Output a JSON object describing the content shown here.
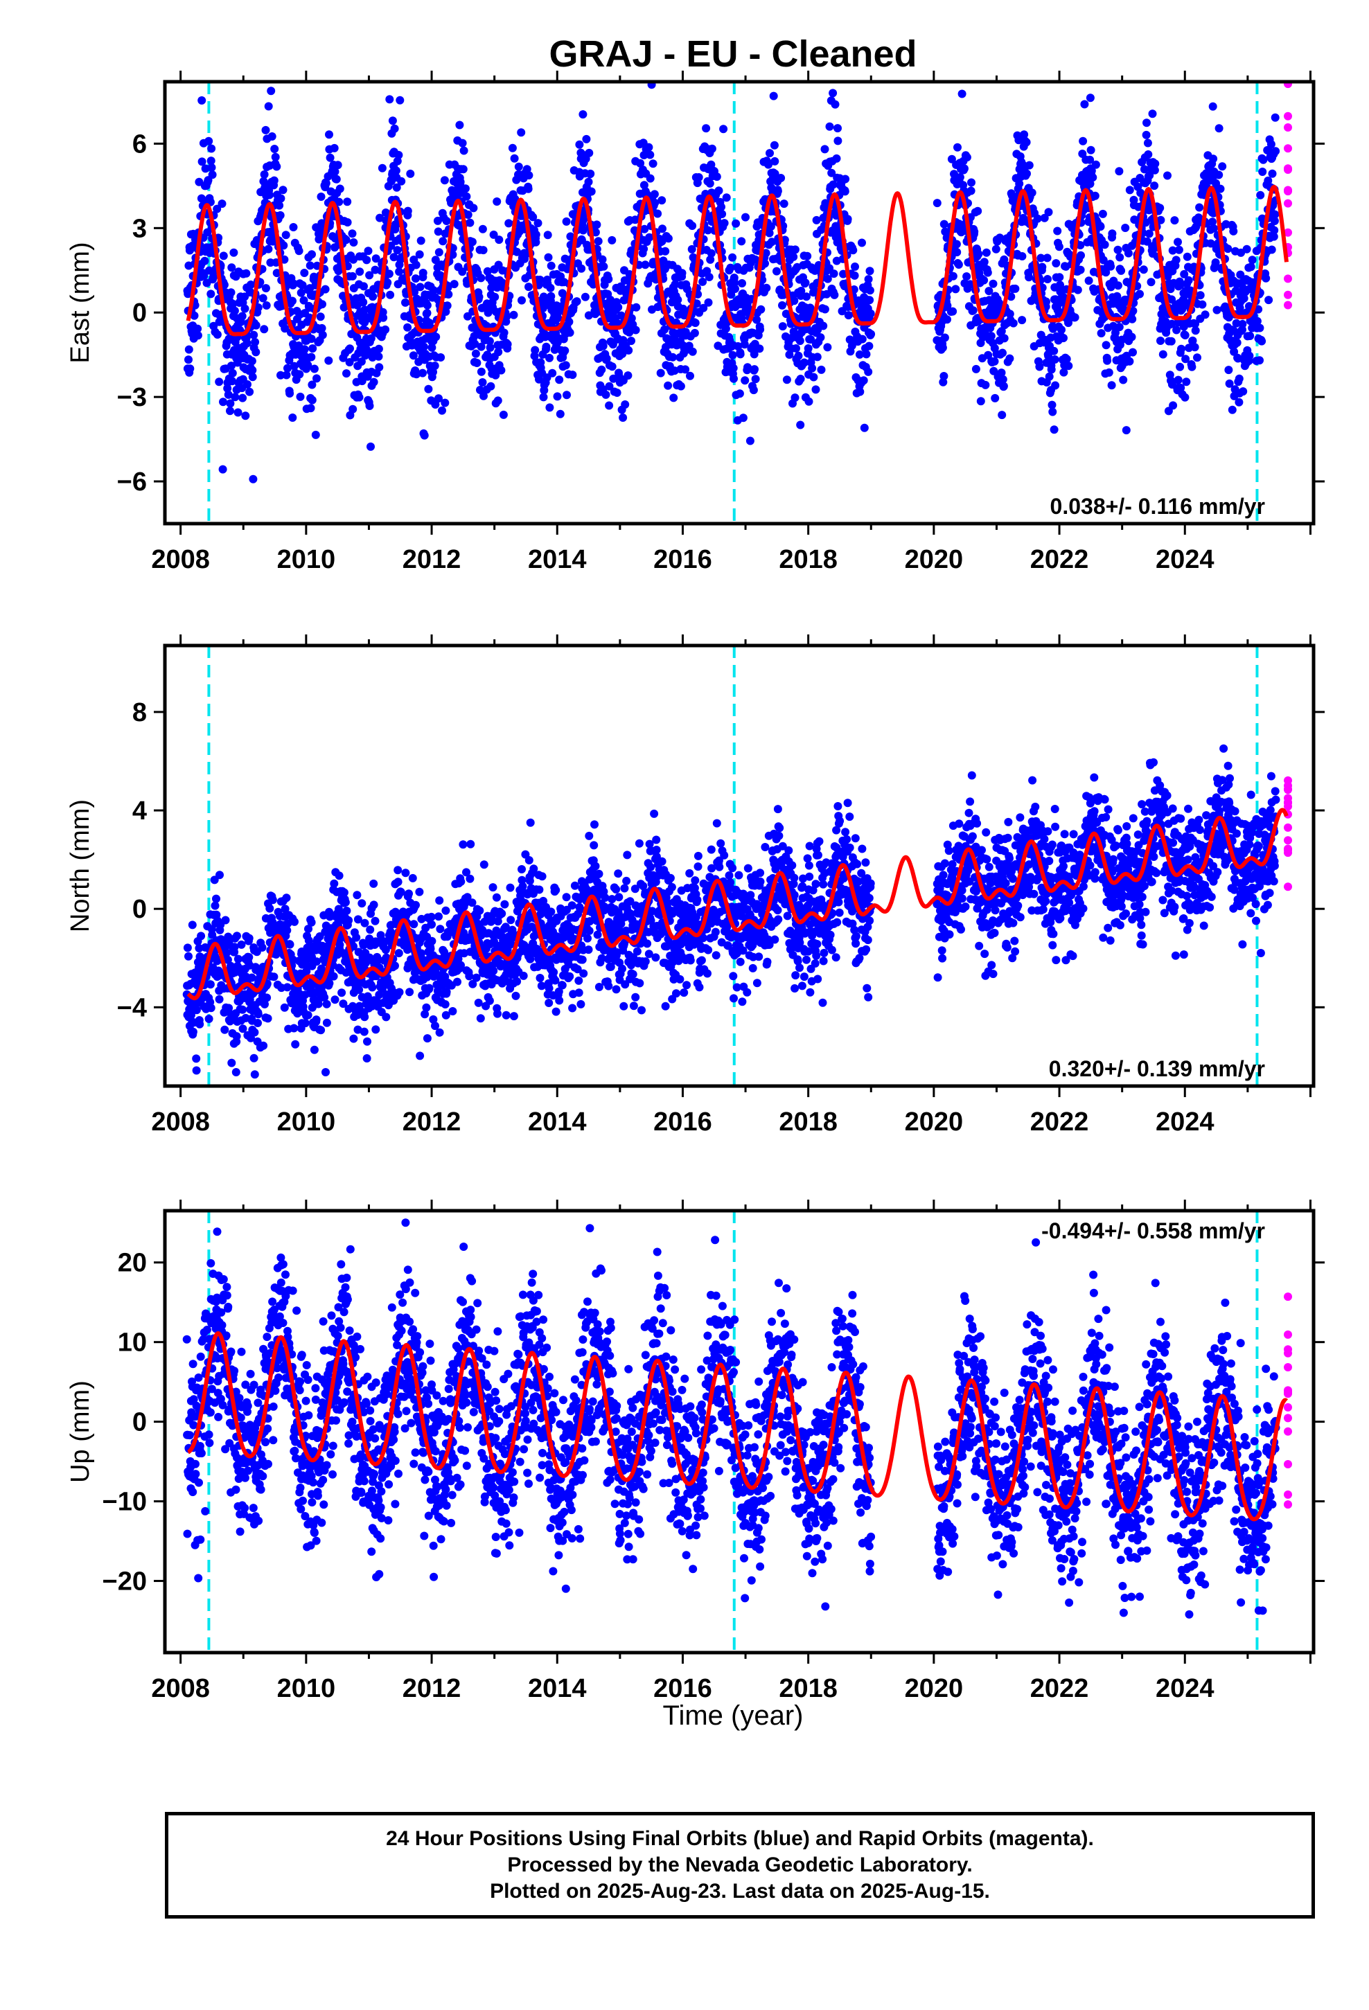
{
  "title": "GRAJ  - EU - Cleaned",
  "footer": {
    "line1": "24 Hour Positions Using Final Orbits (blue) and Rapid Orbits (magenta).",
    "line2": "Processed by the Nevada Geodetic Laboratory.",
    "line3": "Plotted on 2025-Aug-23. Last data on 2025-Aug-15."
  },
  "chart_data": [
    {
      "type": "scatter",
      "ylabel": "East (mm)",
      "xlabel": "",
      "xlim": [
        2007.75,
        2026.05
      ],
      "ylim": [
        -7.5,
        8.2
      ],
      "x_ticks": [
        "2008",
        "2010",
        "2012",
        "2014",
        "2016",
        "2018",
        "2020",
        "2022",
        "2024"
      ],
      "y_ticks": [
        "6",
        "3",
        "0",
        "−3",
        "−6"
      ],
      "y_tick_values": [
        6,
        3,
        0,
        -3,
        -6
      ],
      "rate_label": "0.038+/- 0.116 mm/yr",
      "rate_position": "bottom-right",
      "equipment_changes": [
        2008.45,
        2016.82,
        2025.15
      ],
      "model": {
        "trend_mm_per_yr": 0.038,
        "offset_mm": 0.9,
        "annual_amp_mm": 2.3,
        "semiannual_amp_mm": 0.6,
        "peak_year_fraction": 0.42
      },
      "scatter_sigma_mm": 1.45,
      "data_gap": [
        2019.0,
        2020.05
      ],
      "series": [
        {
          "name": "Final Orbits",
          "color": "#0000ff",
          "x_range": [
            2008.1,
            2025.45
          ]
        },
        {
          "name": "Rapid Orbits",
          "color": "#ff00ff",
          "x_range": [
            2025.45,
            2025.62
          ]
        },
        {
          "name": "Model",
          "color": "#ff0000"
        }
      ],
      "grid": false
    },
    {
      "type": "scatter",
      "ylabel": "North (mm)",
      "xlabel": "",
      "xlim": [
        2007.75,
        2026.05
      ],
      "ylim": [
        -7.2,
        10.7
      ],
      "x_ticks": [
        "2008",
        "2010",
        "2012",
        "2014",
        "2016",
        "2018",
        "2020",
        "2022",
        "2024"
      ],
      "y_ticks": [
        "8",
        "4",
        "0",
        "−4"
      ],
      "y_tick_values": [
        8,
        4,
        0,
        -4
      ],
      "rate_label": "0.320+/- 0.139 mm/yr",
      "rate_position": "bottom-right",
      "equipment_changes": [
        2008.45,
        2016.82,
        2025.15
      ],
      "model": {
        "trend_mm_per_yr": 0.32,
        "offset_mm": -3.0,
        "annual_amp_mm": 0.9,
        "semiannual_amp_mm": 0.5,
        "peak_year_fraction": 0.55
      },
      "scatter_sigma_mm": 1.15,
      "data_gap": [
        2019.0,
        2020.05
      ],
      "series": [
        {
          "name": "Final Orbits",
          "color": "#0000ff",
          "x_range": [
            2008.1,
            2025.45
          ]
        },
        {
          "name": "Rapid Orbits",
          "color": "#ff00ff",
          "x_range": [
            2025.45,
            2025.62
          ]
        },
        {
          "name": "Model",
          "color": "#ff0000"
        }
      ],
      "grid": false
    },
    {
      "type": "scatter",
      "ylabel": "Up (mm)",
      "xlabel": "Time (year)",
      "xlim": [
        2007.75,
        2026.05
      ],
      "ylim": [
        -29,
        26.5
      ],
      "x_ticks": [
        "2008",
        "2010",
        "2012",
        "2014",
        "2016",
        "2018",
        "2020",
        "2022",
        "2024"
      ],
      "y_ticks": [
        "20",
        "10",
        "0",
        "−10",
        "−20"
      ],
      "y_tick_values": [
        20,
        10,
        0,
        -10,
        -20
      ],
      "rate_label": "-0.494+/- 0.558 mm/yr",
      "rate_position": "top-right",
      "equipment_changes": [
        2008.45,
        2016.82,
        2025.15
      ],
      "model": {
        "trend_mm_per_yr": -0.494,
        "offset_mm": 3.0,
        "annual_amp_mm": 7.6,
        "semiannual_amp_mm": 0.8,
        "peak_year_fraction": 0.6
      },
      "scatter_sigma_mm": 5.5,
      "data_gap": [
        2019.0,
        2020.05
      ],
      "series": [
        {
          "name": "Final Orbits",
          "color": "#0000ff",
          "x_range": [
            2008.1,
            2025.45
          ]
        },
        {
          "name": "Rapid Orbits",
          "color": "#ff00ff",
          "x_range": [
            2025.45,
            2025.62
          ]
        },
        {
          "name": "Model",
          "color": "#ff0000"
        }
      ],
      "grid": false
    }
  ]
}
